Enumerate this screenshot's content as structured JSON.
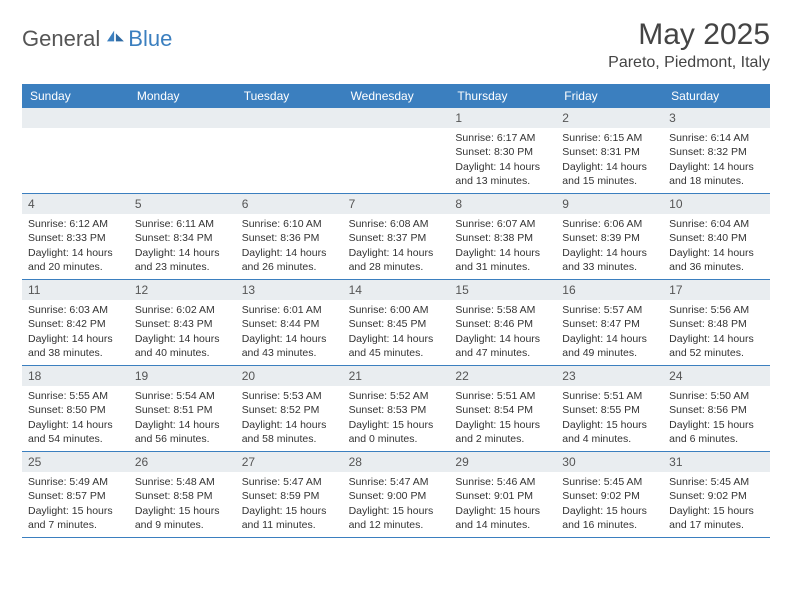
{
  "brand": {
    "part1": "General",
    "part2": "Blue"
  },
  "title": "May 2025",
  "location": "Pareto, Piedmont, Italy",
  "colors": {
    "header_bg": "#3b7fbf",
    "header_fg": "#ffffff",
    "daynum_bg": "#e9edf0",
    "rule": "#3b7fbf",
    "text": "#333333",
    "logo_accent": "#3b7fbf"
  },
  "dow": [
    "Sunday",
    "Monday",
    "Tuesday",
    "Wednesday",
    "Thursday",
    "Friday",
    "Saturday"
  ],
  "leading_blanks": 4,
  "days": [
    {
      "n": 1,
      "sunrise": "6:17 AM",
      "sunset": "8:30 PM",
      "daylight": "14 hours and 13 minutes."
    },
    {
      "n": 2,
      "sunrise": "6:15 AM",
      "sunset": "8:31 PM",
      "daylight": "14 hours and 15 minutes."
    },
    {
      "n": 3,
      "sunrise": "6:14 AM",
      "sunset": "8:32 PM",
      "daylight": "14 hours and 18 minutes."
    },
    {
      "n": 4,
      "sunrise": "6:12 AM",
      "sunset": "8:33 PM",
      "daylight": "14 hours and 20 minutes."
    },
    {
      "n": 5,
      "sunrise": "6:11 AM",
      "sunset": "8:34 PM",
      "daylight": "14 hours and 23 minutes."
    },
    {
      "n": 6,
      "sunrise": "6:10 AM",
      "sunset": "8:36 PM",
      "daylight": "14 hours and 26 minutes."
    },
    {
      "n": 7,
      "sunrise": "6:08 AM",
      "sunset": "8:37 PM",
      "daylight": "14 hours and 28 minutes."
    },
    {
      "n": 8,
      "sunrise": "6:07 AM",
      "sunset": "8:38 PM",
      "daylight": "14 hours and 31 minutes."
    },
    {
      "n": 9,
      "sunrise": "6:06 AM",
      "sunset": "8:39 PM",
      "daylight": "14 hours and 33 minutes."
    },
    {
      "n": 10,
      "sunrise": "6:04 AM",
      "sunset": "8:40 PM",
      "daylight": "14 hours and 36 minutes."
    },
    {
      "n": 11,
      "sunrise": "6:03 AM",
      "sunset": "8:42 PM",
      "daylight": "14 hours and 38 minutes."
    },
    {
      "n": 12,
      "sunrise": "6:02 AM",
      "sunset": "8:43 PM",
      "daylight": "14 hours and 40 minutes."
    },
    {
      "n": 13,
      "sunrise": "6:01 AM",
      "sunset": "8:44 PM",
      "daylight": "14 hours and 43 minutes."
    },
    {
      "n": 14,
      "sunrise": "6:00 AM",
      "sunset": "8:45 PM",
      "daylight": "14 hours and 45 minutes."
    },
    {
      "n": 15,
      "sunrise": "5:58 AM",
      "sunset": "8:46 PM",
      "daylight": "14 hours and 47 minutes."
    },
    {
      "n": 16,
      "sunrise": "5:57 AM",
      "sunset": "8:47 PM",
      "daylight": "14 hours and 49 minutes."
    },
    {
      "n": 17,
      "sunrise": "5:56 AM",
      "sunset": "8:48 PM",
      "daylight": "14 hours and 52 minutes."
    },
    {
      "n": 18,
      "sunrise": "5:55 AM",
      "sunset": "8:50 PM",
      "daylight": "14 hours and 54 minutes."
    },
    {
      "n": 19,
      "sunrise": "5:54 AM",
      "sunset": "8:51 PM",
      "daylight": "14 hours and 56 minutes."
    },
    {
      "n": 20,
      "sunrise": "5:53 AM",
      "sunset": "8:52 PM",
      "daylight": "14 hours and 58 minutes."
    },
    {
      "n": 21,
      "sunrise": "5:52 AM",
      "sunset": "8:53 PM",
      "daylight": "15 hours and 0 minutes."
    },
    {
      "n": 22,
      "sunrise": "5:51 AM",
      "sunset": "8:54 PM",
      "daylight": "15 hours and 2 minutes."
    },
    {
      "n": 23,
      "sunrise": "5:51 AM",
      "sunset": "8:55 PM",
      "daylight": "15 hours and 4 minutes."
    },
    {
      "n": 24,
      "sunrise": "5:50 AM",
      "sunset": "8:56 PM",
      "daylight": "15 hours and 6 minutes."
    },
    {
      "n": 25,
      "sunrise": "5:49 AM",
      "sunset": "8:57 PM",
      "daylight": "15 hours and 7 minutes."
    },
    {
      "n": 26,
      "sunrise": "5:48 AM",
      "sunset": "8:58 PM",
      "daylight": "15 hours and 9 minutes."
    },
    {
      "n": 27,
      "sunrise": "5:47 AM",
      "sunset": "8:59 PM",
      "daylight": "15 hours and 11 minutes."
    },
    {
      "n": 28,
      "sunrise": "5:47 AM",
      "sunset": "9:00 PM",
      "daylight": "15 hours and 12 minutes."
    },
    {
      "n": 29,
      "sunrise": "5:46 AM",
      "sunset": "9:01 PM",
      "daylight": "15 hours and 14 minutes."
    },
    {
      "n": 30,
      "sunrise": "5:45 AM",
      "sunset": "9:02 PM",
      "daylight": "15 hours and 16 minutes."
    },
    {
      "n": 31,
      "sunrise": "5:45 AM",
      "sunset": "9:02 PM",
      "daylight": "15 hours and 17 minutes."
    }
  ],
  "labels": {
    "sunrise": "Sunrise: ",
    "sunset": "Sunset: ",
    "daylight": "Daylight: "
  }
}
